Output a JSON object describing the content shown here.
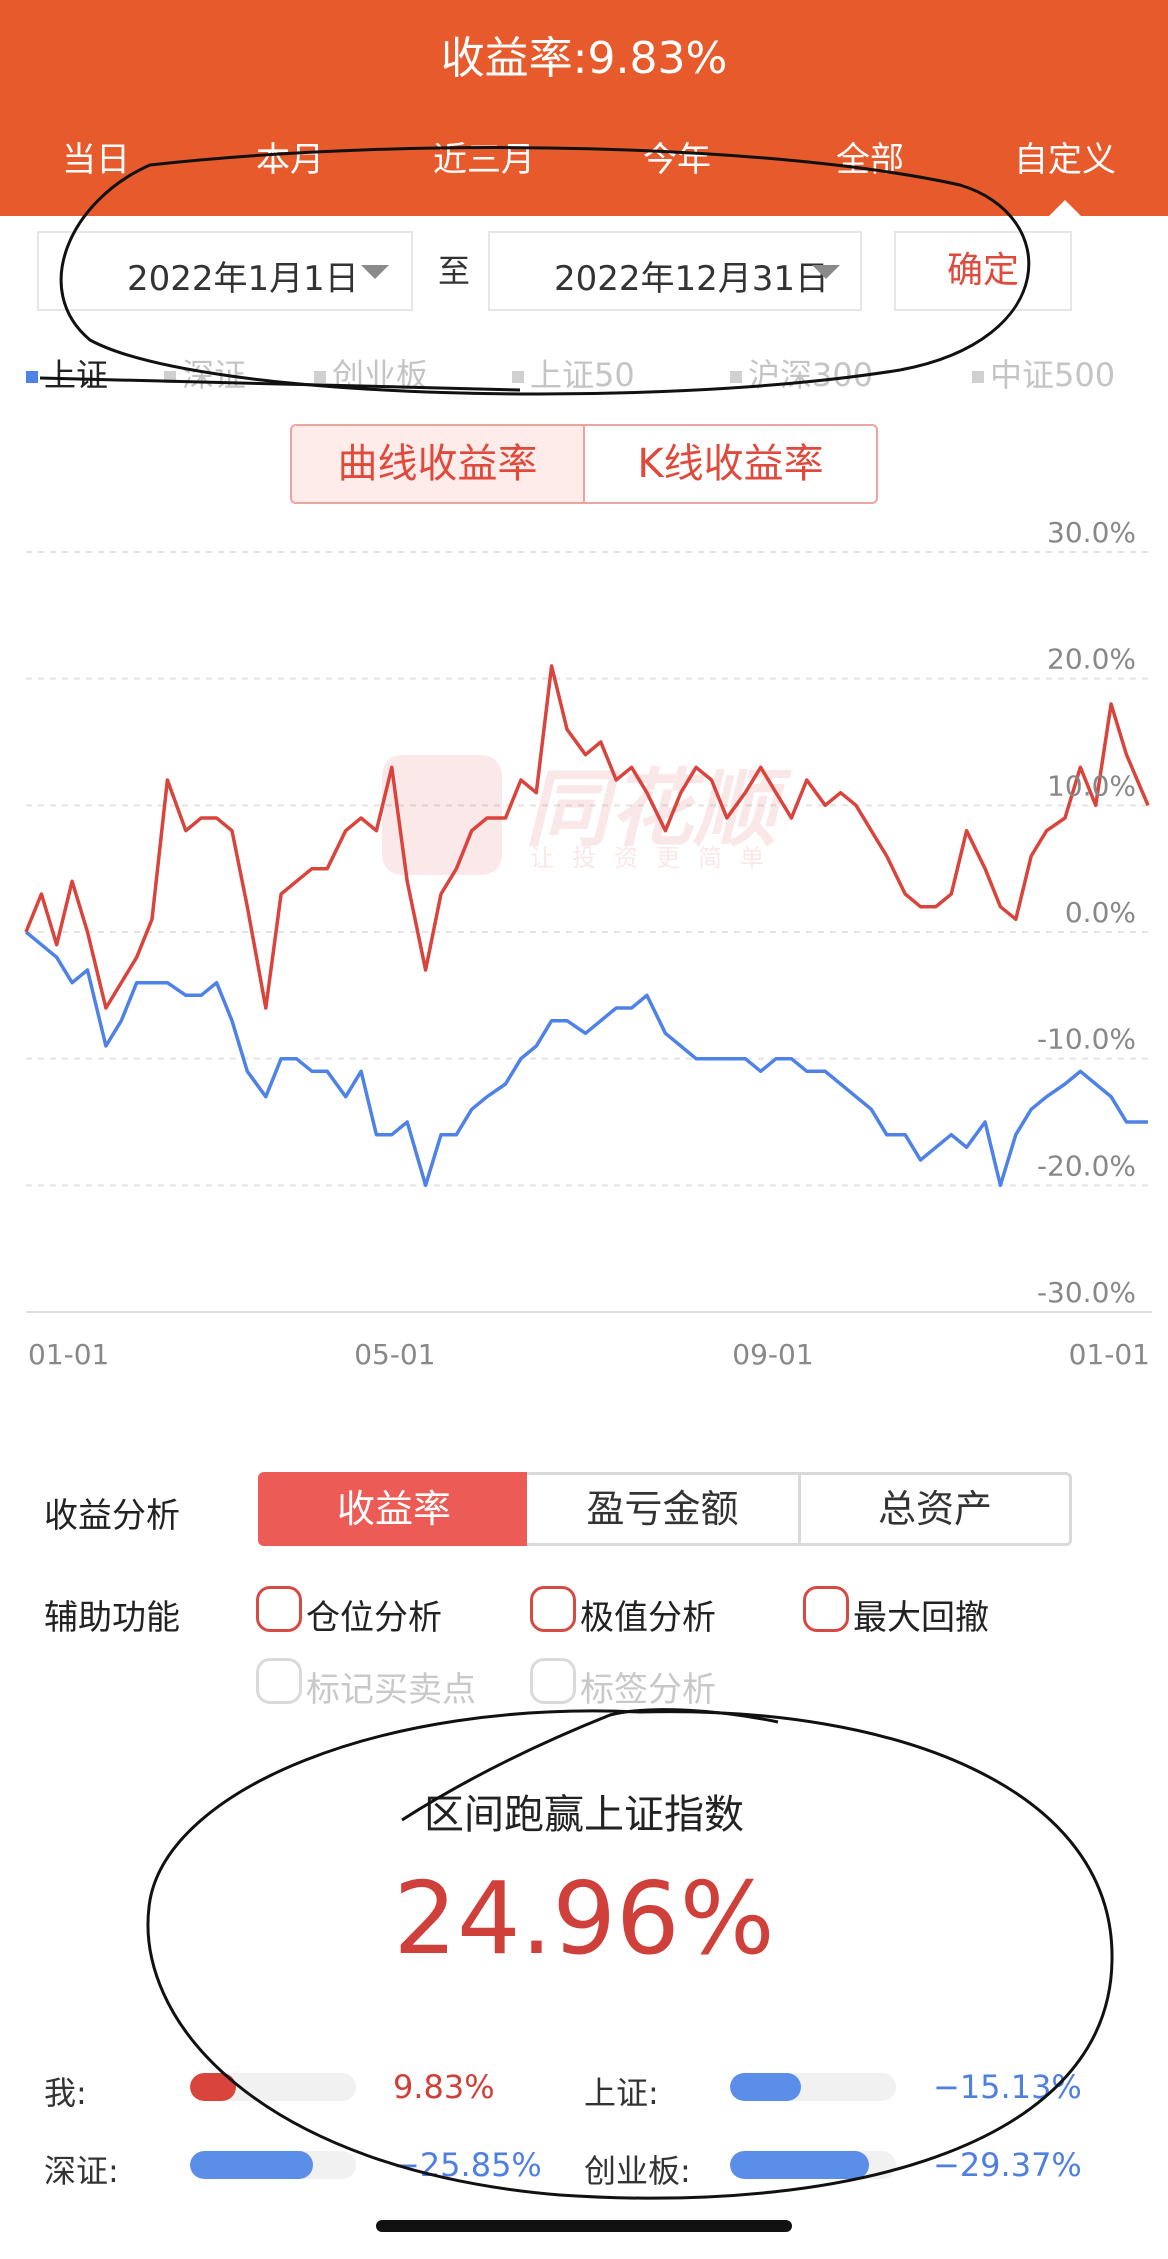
{
  "header": {
    "title": "收益率:9.83%",
    "tabs": [
      "当日",
      "本月",
      "近三月",
      "今年",
      "全部",
      "自定义"
    ],
    "active_tab": "自定义"
  },
  "date_range": {
    "start": "2022年1月1日",
    "separator": "至",
    "end": "2022年12月31日",
    "confirm": "确定"
  },
  "indices": [
    "上证",
    "深证",
    "创业板",
    "上证50",
    "沪深300",
    "中证500"
  ],
  "active_index": "上证",
  "chart_toggle": [
    "曲线收益率",
    "K线收益率"
  ],
  "watermark": {
    "brand": "同花顺",
    "slogan": "让投资更简单"
  },
  "chart_data": {
    "type": "line",
    "title": "",
    "xlabel": "",
    "ylabel": "",
    "ylim": [
      -30,
      30
    ],
    "y_ticks": [
      "30.0%",
      "20.0%",
      "10.0%",
      "0.0%",
      "-10.0%",
      "-20.0%",
      "-30.0%"
    ],
    "x_ticks": [
      "01-01",
      "05-01",
      "09-01",
      "01-01"
    ],
    "grid": true,
    "x": [
      0,
      5,
      10,
      15,
      20,
      26,
      31,
      36,
      41,
      46,
      52,
      57,
      62,
      67,
      72,
      78,
      83,
      88,
      93,
      98,
      104,
      109,
      114,
      119,
      124,
      130,
      135,
      140,
      145,
      150,
      156,
      161,
      166,
      171,
      176,
      182,
      187,
      192,
      197,
      202,
      208,
      213,
      218,
      223,
      228,
      234,
      239,
      244,
      249,
      254,
      260,
      265,
      270,
      275,
      280,
      286,
      291,
      296,
      301,
      306,
      312,
      317,
      322,
      327,
      332,
      338,
      343,
      348,
      353,
      358,
      365
    ],
    "series": [
      {
        "color": "#d9443c",
        "values": [
          0,
          3,
          -1,
          4,
          0,
          -6,
          -4,
          -2,
          1,
          12,
          8,
          9,
          9,
          8,
          2,
          -6,
          3,
          4,
          5,
          5,
          8,
          9,
          8,
          13,
          4,
          -3,
          3,
          5,
          8,
          9,
          9,
          12,
          11,
          21,
          16,
          14,
          15,
          12,
          13,
          11,
          8,
          11,
          13,
          12,
          9,
          11,
          13,
          11,
          9,
          12,
          10,
          11,
          10,
          8,
          6,
          3,
          2,
          2,
          3,
          8,
          5,
          2,
          1,
          6,
          8,
          9,
          13,
          10,
          18,
          14,
          10
        ]
      },
      {
        "color": "#4f82e6",
        "values": [
          0,
          -1,
          -2,
          -4,
          -3,
          -9,
          -7,
          -4,
          -4,
          -4,
          -5,
          -5,
          -4,
          -7,
          -11,
          -13,
          -10,
          -10,
          -11,
          -11,
          -13,
          -11,
          -16,
          -16,
          -15,
          -20,
          -16,
          -16,
          -14,
          -13,
          -12,
          -10,
          -9,
          -7,
          -7,
          -8,
          -7,
          -6,
          -6,
          -5,
          -8,
          -9,
          -10,
          -10,
          -10,
          -10,
          -11,
          -10,
          -10,
          -11,
          -11,
          -12,
          -13,
          -14,
          -16,
          -16,
          -18,
          -17,
          -16,
          -17,
          -15,
          -20,
          -16,
          -14,
          -13,
          -12,
          -11,
          -12,
          -13,
          -15,
          -15
        ]
      }
    ]
  },
  "analysis": {
    "label": "收益分析",
    "options": [
      "收益率",
      "盈亏金额",
      "总资产"
    ],
    "active": "收益率"
  },
  "aux": {
    "label": "辅助功能",
    "row1": [
      "仓位分析",
      "极值分析",
      "最大回撤"
    ],
    "row2": [
      "标记买卖点",
      "标签分析"
    ]
  },
  "summary": {
    "title": "区间跑赢上证指数",
    "value": "24.96%",
    "items": [
      {
        "label": "我:",
        "value": "9.83%",
        "fraction": 0.28,
        "color": "#d9443c"
      },
      {
        "label": "上证:",
        "value": "−15.13%",
        "fraction": 0.43,
        "color": "#5b8ee8"
      },
      {
        "label": "深证:",
        "value": "−25.85%",
        "fraction": 0.74,
        "color": "#5b8ee8"
      },
      {
        "label": "创业板:",
        "value": "−29.37%",
        "fraction": 0.84,
        "color": "#5b8ee8"
      }
    ]
  }
}
